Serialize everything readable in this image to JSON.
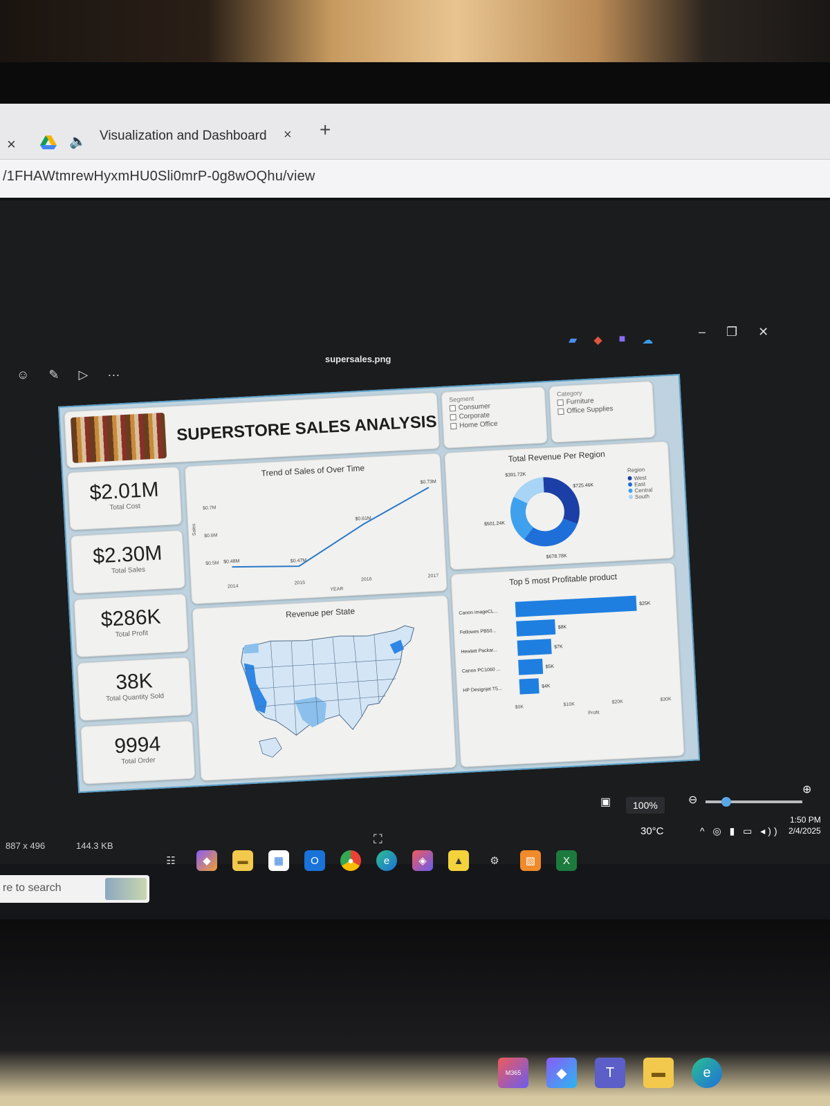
{
  "browser": {
    "close_glyph": "×",
    "tab_title": "Visualization and Dashboard",
    "tab_close_glyph": "×",
    "new_tab_glyph": "+",
    "url": "/1FHAWtmrewHyxmHU0Sli0mrP-0g8wOQhu/view"
  },
  "viewer": {
    "filename": "supersales.png",
    "more_glyph": "···",
    "dimensions": "887 x 496",
    "file_size": "144.3 KB",
    "zoom": "100%",
    "zoom_fraction": 0.18
  },
  "dashboard": {
    "title": "SUPERSTORE SALES ANALYSIS",
    "kpis": [
      {
        "value": "$2.01M",
        "label": "Total Cost"
      },
      {
        "value": "$2.30M",
        "label": "Total Sales"
      },
      {
        "value": "$286K",
        "label": "Total Profit"
      },
      {
        "value": "38K",
        "label": "Total Quantity Sold"
      },
      {
        "value": "9994",
        "label": "Total Order"
      }
    ],
    "segment_filter": {
      "heading": "Segment",
      "options": [
        "Consumer",
        "Corporate",
        "Home Office"
      ]
    },
    "category_filter": {
      "heading": "Category",
      "options": [
        "Furniture",
        "Office Supplies"
      ]
    },
    "trend_title": "Trend of Sales of Over Time",
    "trend_ylabel": "Sales",
    "trend_xlabel": "YEAR",
    "map_title": "Revenue per State",
    "donut_title": "Total Revenue Per Region",
    "legend_title": "Region",
    "bar_title": "Top 5 most Profitable product",
    "bar_xlabel": "Profit"
  },
  "chart_data": [
    {
      "type": "line",
      "title": "Trend of Sales of Over Time",
      "xlabel": "YEAR",
      "ylabel": "Sales",
      "x": [
        "2014",
        "2015",
        "2016",
        "2017"
      ],
      "values": [
        0.48,
        0.47,
        0.61,
        0.73
      ],
      "data_labels": [
        "$0.48M",
        "$0.47M",
        "$0.61M",
        "$0.73M"
      ],
      "y_ticks": [
        "$0.5M",
        "$0.6M",
        "$0.7M"
      ],
      "ylim": [
        0.45,
        0.75
      ]
    },
    {
      "type": "pie",
      "title": "Total Revenue Per Region",
      "categories": [
        "West",
        "East",
        "Central",
        "South"
      ],
      "values": [
        725.46,
        678.78,
        501.24,
        391.72
      ],
      "data_labels": [
        "$725.46K",
        "$678.78K",
        "$501.24K",
        "$391.72K"
      ],
      "colors": [
        "#1b3fa6",
        "#1f6fd9",
        "#3fa0ee",
        "#a8d4f5"
      ],
      "legend": "right"
    },
    {
      "type": "bar",
      "title": "Top 5 most Profitable product",
      "xlabel": "Profit",
      "categories": [
        "Canon imageCL...",
        "Fellowes PB50...",
        "Hewlett Packar...",
        "Canon PC1060 ...",
        "HP Designjet T5..."
      ],
      "values": [
        25,
        8,
        7,
        5,
        4
      ],
      "data_labels": [
        "$25K",
        "$8K",
        "$7K",
        "$5K",
        "$4K"
      ],
      "x_ticks": [
        "$0K",
        "$10K",
        "$20K",
        "$30K"
      ],
      "xlim": [
        0,
        30
      ],
      "color": "#1f7fe0"
    }
  ],
  "statusbar": {
    "weather": "30°C",
    "time": "1:50 PM",
    "date": "2/4/2025",
    "search_placeholder": "re to search"
  },
  "dock": {
    "m365_label": "M365"
  }
}
